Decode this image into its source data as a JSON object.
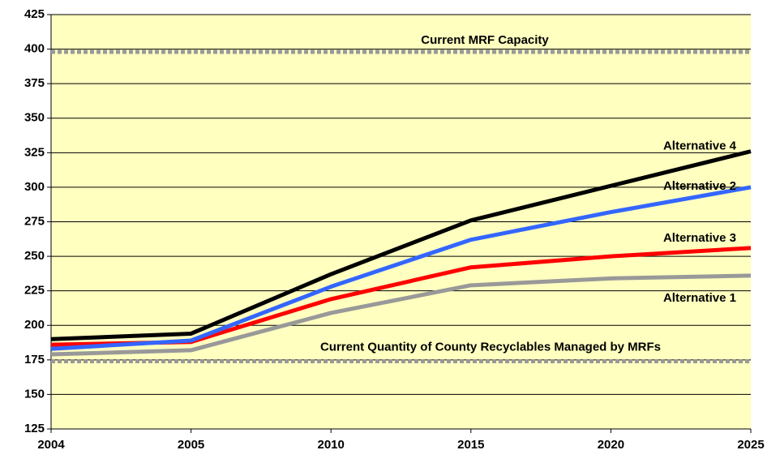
{
  "chart_data": {
    "type": "line",
    "categories": [
      "2004",
      "2005",
      "2010",
      "2015",
      "2020",
      "2025"
    ],
    "series": [
      {
        "name": "Alternative 1",
        "color": "#999999",
        "values": [
          179,
          182,
          209,
          229,
          234,
          236
        ]
      },
      {
        "name": "Alternative 3",
        "color": "#ff0000",
        "values": [
          186,
          188,
          219,
          242,
          250,
          256
        ]
      },
      {
        "name": "Alternative 2",
        "color": "#3366ff",
        "values": [
          183,
          189,
          228,
          262,
          282,
          300
        ]
      },
      {
        "name": "Alternative 4",
        "color": "#000000",
        "values": [
          190,
          194,
          237,
          276,
          301,
          326
        ]
      }
    ],
    "reference_lines": [
      {
        "label": "Current MRF Capacity",
        "value": 398,
        "color": "#999999"
      },
      {
        "label": "Current Quantity of County Recyclables Managed by MRFs",
        "value": 174,
        "color": "#999999"
      }
    ],
    "ylim": [
      125,
      425
    ],
    "yticks": [
      125,
      150,
      175,
      200,
      225,
      250,
      275,
      300,
      325,
      350,
      375,
      400,
      425
    ],
    "grid": true,
    "background": "#ffffc0"
  }
}
